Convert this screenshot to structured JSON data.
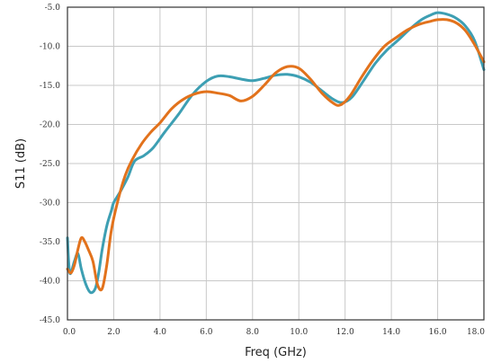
{
  "chart_data": {
    "type": "line",
    "title": "",
    "xlabel": "Freq (GHz)",
    "ylabel": "S11 (dB)",
    "xlim": [
      0,
      18
    ],
    "ylim": [
      -45,
      -5
    ],
    "xticks": [
      0,
      2,
      4,
      6,
      8,
      10,
      12,
      14,
      16,
      18
    ],
    "xtick_labels": [
      "0.0",
      "2.0",
      "4.0",
      "6.0",
      "8.0",
      "10.0",
      "12.0",
      "14.0",
      "16.0",
      "18.0"
    ],
    "yticks": [
      -5,
      -10,
      -15,
      -20,
      -25,
      -30,
      -35,
      -40,
      -45
    ],
    "ytick_labels": [
      "-5.0",
      "-10.0",
      "-15.0",
      "-20.0",
      "-25.0",
      "-30.0",
      "-35.0",
      "-40.0",
      "-45.0"
    ],
    "grid": true,
    "legend": "none",
    "series": [
      {
        "color": "#3d9fb3",
        "x": [
          0,
          0.1,
          0.3,
          0.45,
          0.6,
          0.8,
          1.0,
          1.2,
          1.35,
          1.5,
          1.7,
          1.9,
          2.0,
          2.3,
          2.6,
          2.9,
          3.3,
          3.7,
          4.2,
          4.8,
          5.4,
          6.0,
          6.5,
          7.0,
          7.5,
          8.0,
          8.5,
          9.0,
          9.5,
          10.0,
          10.5,
          11.0,
          11.5,
          11.9,
          12.3,
          12.8,
          13.3,
          13.8,
          14.3,
          14.8,
          15.3,
          15.7,
          16.0,
          16.4,
          16.8,
          17.2,
          17.6,
          18.0
        ],
        "y": [
          -34.5,
          -39,
          -37.5,
          -36.5,
          -38.5,
          -40.5,
          -41.5,
          -41,
          -39,
          -36,
          -33,
          -31,
          -30,
          -28.5,
          -26.8,
          -24.7,
          -24,
          -23,
          -21,
          -18.7,
          -16.2,
          -14.5,
          -13.8,
          -13.9,
          -14.2,
          -14.4,
          -14.1,
          -13.7,
          -13.6,
          -13.9,
          -14.6,
          -15.7,
          -16.8,
          -17.2,
          -16.5,
          -14.4,
          -12.2,
          -10.5,
          -9.2,
          -7.8,
          -6.6,
          -6.0,
          -5.7,
          -5.9,
          -6.4,
          -7.4,
          -9.3,
          -13.0
        ]
      },
      {
        "color": "#e2721c",
        "x": [
          0,
          0.15,
          0.3,
          0.45,
          0.6,
          0.75,
          0.9,
          1.1,
          1.3,
          1.5,
          1.7,
          1.9,
          2.2,
          2.5,
          2.8,
          3.2,
          3.6,
          4.0,
          4.5,
          5.0,
          5.5,
          6.0,
          6.5,
          7.0,
          7.5,
          8.0,
          8.5,
          9.0,
          9.5,
          10.0,
          10.5,
          11.0,
          11.5,
          11.8,
          12.2,
          12.7,
          13.2,
          13.7,
          14.2,
          14.7,
          15.2,
          15.7,
          16.0,
          16.4,
          16.8,
          17.2,
          17.6,
          18.0
        ],
        "y": [
          -38.5,
          -39,
          -38,
          -36,
          -34.5,
          -35,
          -36,
          -37.5,
          -40.5,
          -41,
          -38,
          -33.5,
          -29.5,
          -26.5,
          -24.5,
          -22.5,
          -21,
          -19.8,
          -18,
          -16.8,
          -16.1,
          -15.8,
          -16.0,
          -16.3,
          -17.0,
          -16.4,
          -15.0,
          -13.4,
          -12.6,
          -12.8,
          -14.2,
          -16.0,
          -17.3,
          -17.5,
          -16.4,
          -14.0,
          -11.8,
          -10.0,
          -8.9,
          -7.9,
          -7.2,
          -6.8,
          -6.6,
          -6.6,
          -7.0,
          -8.0,
          -9.8,
          -12.0
        ]
      }
    ]
  }
}
